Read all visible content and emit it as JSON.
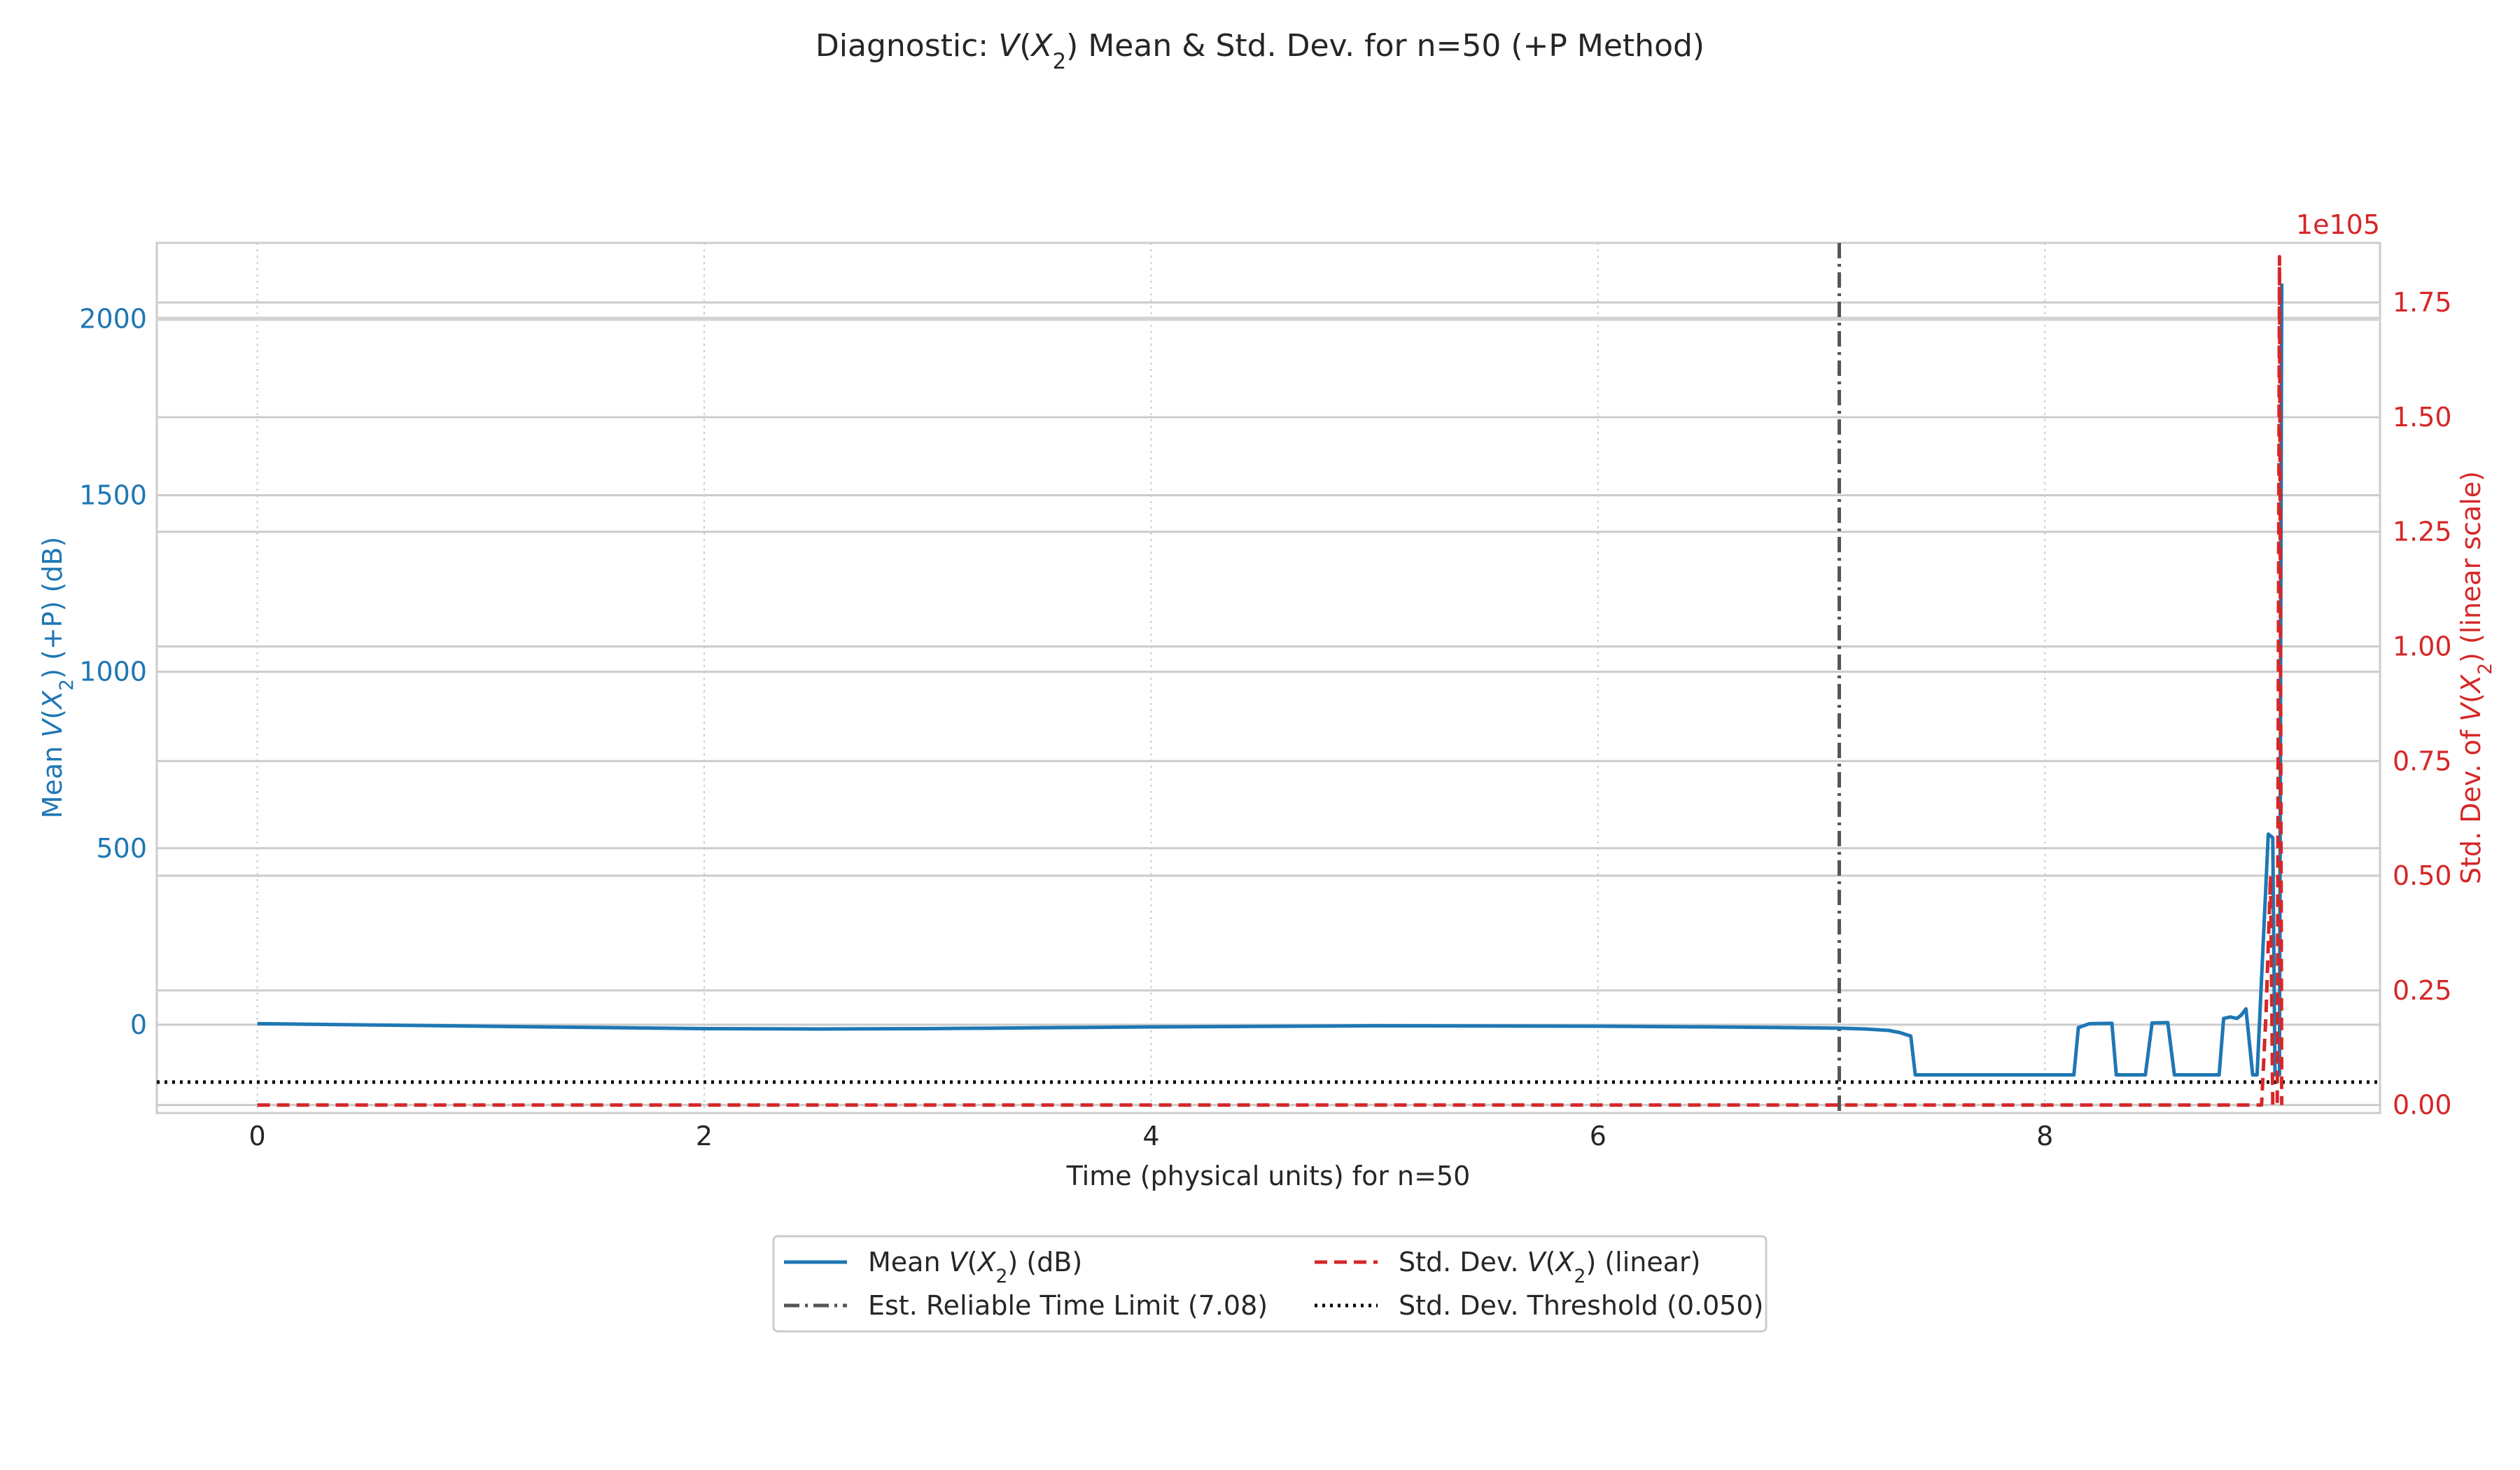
{
  "chart_data": {
    "type": "line",
    "title": "Diagnostic: V(X₂) Mean & Std. Dev. for n=50 (+P Method)",
    "xlabel": "Time (physical units) for n=50",
    "ylabel_left": "Mean V(X₂) (+P) (dB)",
    "ylabel_right": "Std. Dev. of V(X₂) (linear scale)",
    "right_axis_offset": "1e105",
    "xlim": [
      -0.45,
      9.5
    ],
    "ylim_left": [
      -250,
      2215
    ],
    "ylim_right": [
      -0.0174,
      1.88
    ],
    "xticks": [
      "0",
      "2",
      "4",
      "6",
      "8"
    ],
    "xtick_values": [
      0,
      2,
      4,
      6,
      8
    ],
    "yticks_left": [
      "0",
      "500",
      "1000",
      "1500",
      "2000"
    ],
    "ytick_values_left": [
      0,
      500,
      1000,
      1500,
      2000
    ],
    "yticks_right": [
      "0.00",
      "0.25",
      "0.50",
      "0.75",
      "1.00",
      "1.25",
      "1.50",
      "1.75"
    ],
    "ytick_values_right": [
      0,
      0.25,
      0.5,
      0.75,
      1.0,
      1.25,
      1.5,
      1.75
    ],
    "grid": true,
    "legend_position": "bottom-center",
    "series": [
      {
        "name": "Mean V(X₂) (dB)",
        "axis": "left",
        "color": "#1f77b4",
        "style": "solid",
        "x": [
          0,
          1,
          2,
          2.5,
          3,
          4,
          5,
          6,
          6.5,
          7,
          7.1,
          7.2,
          7.3,
          7.35,
          7.4,
          7.42,
          8.13,
          8.15,
          8.2,
          8.3,
          8.32,
          8.45,
          8.48,
          8.55,
          8.58,
          8.78,
          8.8,
          8.83,
          8.86,
          8.88,
          8.9,
          8.93,
          8.95,
          9.0,
          9.02,
          9.03,
          9.05,
          9.06
        ],
        "y": [
          3,
          -4,
          -11,
          -12,
          -11,
          -6,
          -3,
          -4,
          -6,
          -9,
          -10,
          -12,
          -16,
          -22,
          -32,
          -142,
          -142,
          -8,
          3,
          4,
          -142,
          -142,
          5,
          6,
          -142,
          -142,
          18,
          22,
          18,
          28,
          45,
          -142,
          -142,
          540,
          530,
          -142,
          -142,
          2100
        ]
      },
      {
        "name": "Std. Dev. V(X₂) (linear)",
        "axis": "right",
        "color": "#d62728",
        "style": "dashed",
        "x": [
          0,
          8.97,
          8.99,
          9.01,
          9.02,
          9.04,
          9.05,
          9.06
        ],
        "y": [
          0,
          0,
          0.2,
          0.5,
          0,
          0,
          1.85,
          0
        ]
      }
    ],
    "reference_lines": [
      {
        "name": "Est. Reliable Time Limit (7.08)",
        "orientation": "vertical",
        "axis": "x",
        "value": 7.08,
        "color": "#555555",
        "style": "dashdot"
      },
      {
        "name": "Std. Dev. Threshold (0.050)",
        "orientation": "horizontal",
        "axis": "right",
        "value": 0.05,
        "color": "#000000",
        "style": "dotted"
      }
    ]
  },
  "legend": {
    "mean_prefix": "Mean ",
    "mean_suffix": " (dB)",
    "std_prefix": "Std. Dev. ",
    "std_suffix": " (linear)",
    "limit_label": "Est. Reliable Time Limit (7.08)",
    "threshold_label": "Std. Dev. Threshold (0.050)"
  },
  "math": {
    "v_open": "V(",
    "x": "X",
    "sub": "2",
    "v_close": ")"
  }
}
